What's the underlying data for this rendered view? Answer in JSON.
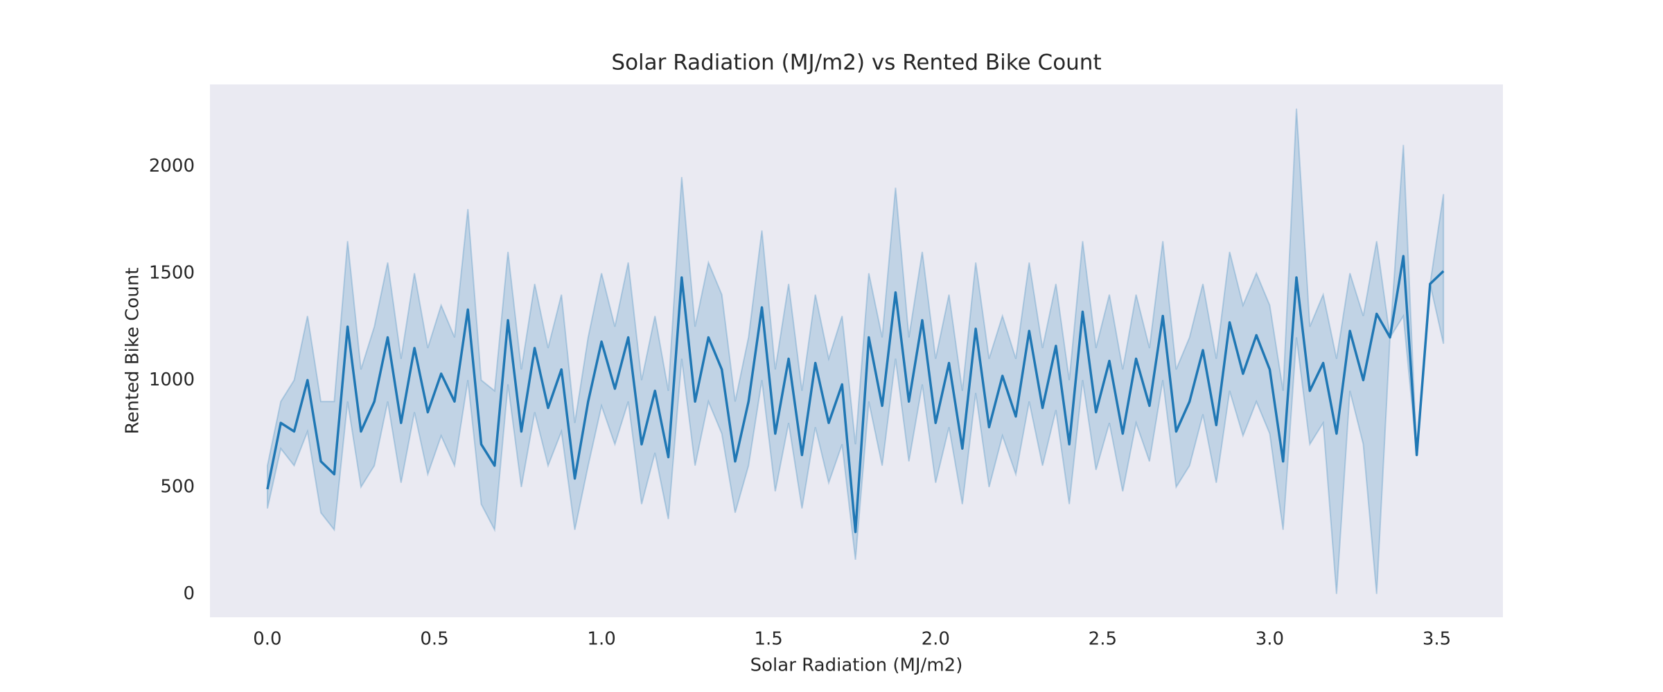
{
  "chart_data": {
    "type": "line",
    "title": "Solar Radiation (MJ/m2) vs Rented Bike Count",
    "xlabel": "Solar Radiation (MJ/m2)",
    "ylabel": "Rented Bike Count",
    "x": [
      0.0,
      0.04,
      0.08,
      0.12,
      0.16,
      0.2,
      0.24,
      0.28,
      0.32,
      0.36,
      0.4,
      0.44,
      0.48,
      0.52,
      0.56,
      0.6,
      0.64,
      0.68,
      0.72,
      0.76,
      0.8,
      0.84,
      0.88,
      0.92,
      0.96,
      1.0,
      1.04,
      1.08,
      1.12,
      1.16,
      1.2,
      1.24,
      1.28,
      1.32,
      1.36,
      1.4,
      1.44,
      1.48,
      1.52,
      1.56,
      1.6,
      1.64,
      1.68,
      1.72,
      1.76,
      1.8,
      1.84,
      1.88,
      1.92,
      1.96,
      2.0,
      2.04,
      2.08,
      2.12,
      2.16,
      2.2,
      2.24,
      2.28,
      2.32,
      2.36,
      2.4,
      2.44,
      2.48,
      2.52,
      2.56,
      2.6,
      2.64,
      2.68,
      2.72,
      2.76,
      2.8,
      2.84,
      2.88,
      2.92,
      2.96,
      3.0,
      3.04,
      3.08,
      3.12,
      3.16,
      3.2,
      3.24,
      3.28,
      3.32,
      3.36,
      3.4,
      3.44,
      3.48,
      3.52
    ],
    "series": [
      {
        "color": "#1f77b4",
        "values": [
          490,
          800,
          760,
          1000,
          620,
          560,
          1250,
          760,
          900,
          1200,
          800,
          1150,
          850,
          1030,
          900,
          1330,
          700,
          600,
          1280,
          760,
          1150,
          870,
          1050,
          540,
          900,
          1180,
          960,
          1200,
          700,
          950,
          640,
          1480,
          900,
          1200,
          1050,
          620,
          900,
          1340,
          750,
          1100,
          650,
          1080,
          800,
          980,
          290,
          1200,
          880,
          1410,
          900,
          1280,
          800,
          1080,
          680,
          1240,
          780,
          1020,
          830,
          1230,
          870,
          1160,
          700,
          1320,
          850,
          1090,
          750,
          1100,
          880,
          1300,
          760,
          900,
          1140,
          790,
          1270,
          1030,
          1210,
          1050,
          620,
          1480,
          950,
          1080,
          750,
          1230,
          1000,
          1310,
          1200,
          1580,
          650,
          1450,
          1510
        ],
        "lower": [
          400,
          680,
          600,
          760,
          380,
          300,
          900,
          500,
          600,
          900,
          520,
          850,
          560,
          740,
          600,
          1000,
          420,
          300,
          980,
          500,
          850,
          600,
          760,
          300,
          600,
          880,
          700,
          900,
          420,
          660,
          350,
          1100,
          600,
          900,
          750,
          380,
          600,
          1000,
          480,
          800,
          400,
          780,
          520,
          700,
          160,
          900,
          600,
          1100,
          620,
          980,
          520,
          780,
          420,
          940,
          500,
          740,
          560,
          900,
          600,
          860,
          420,
          1000,
          580,
          800,
          480,
          800,
          620,
          1000,
          500,
          600,
          840,
          520,
          950,
          740,
          900,
          750,
          300,
          1200,
          700,
          800,
          0,
          950,
          700,
          0,
          1200,
          1300,
          650,
          1450,
          1170
        ],
        "upper": [
          600,
          900,
          1000,
          1300,
          900,
          900,
          1650,
          1050,
          1250,
          1550,
          1100,
          1500,
          1150,
          1350,
          1200,
          1800,
          1000,
          950,
          1600,
          1050,
          1450,
          1150,
          1400,
          800,
          1200,
          1500,
          1250,
          1550,
          1000,
          1300,
          950,
          1950,
          1250,
          1550,
          1400,
          900,
          1200,
          1700,
          1050,
          1450,
          950,
          1400,
          1100,
          1300,
          700,
          1500,
          1200,
          1900,
          1200,
          1600,
          1100,
          1400,
          950,
          1550,
          1100,
          1300,
          1100,
          1550,
          1150,
          1450,
          1000,
          1650,
          1150,
          1400,
          1050,
          1400,
          1150,
          1650,
          1050,
          1200,
          1450,
          1100,
          1600,
          1350,
          1500,
          1350,
          950,
          2270,
          1250,
          1400,
          1100,
          1500,
          1300,
          1650,
          1200,
          2100,
          650,
          1450,
          1870
        ]
      }
    ],
    "xlim": [
      -0.172,
      3.698
    ],
    "ylim": [
      -109,
      2383
    ],
    "xticks": [
      {
        "value": 0,
        "label": "0.0"
      },
      0.5,
      {
        "value": 1,
        "label": "1.0"
      },
      1.5,
      {
        "value": 2,
        "label": "2.0"
      },
      2.5,
      {
        "value": 3,
        "label": "3.0"
      },
      3.5
    ],
    "yticks": [
      0,
      500,
      1000,
      1500,
      2000
    ],
    "grid": false,
    "background": "#eaeaf2"
  }
}
